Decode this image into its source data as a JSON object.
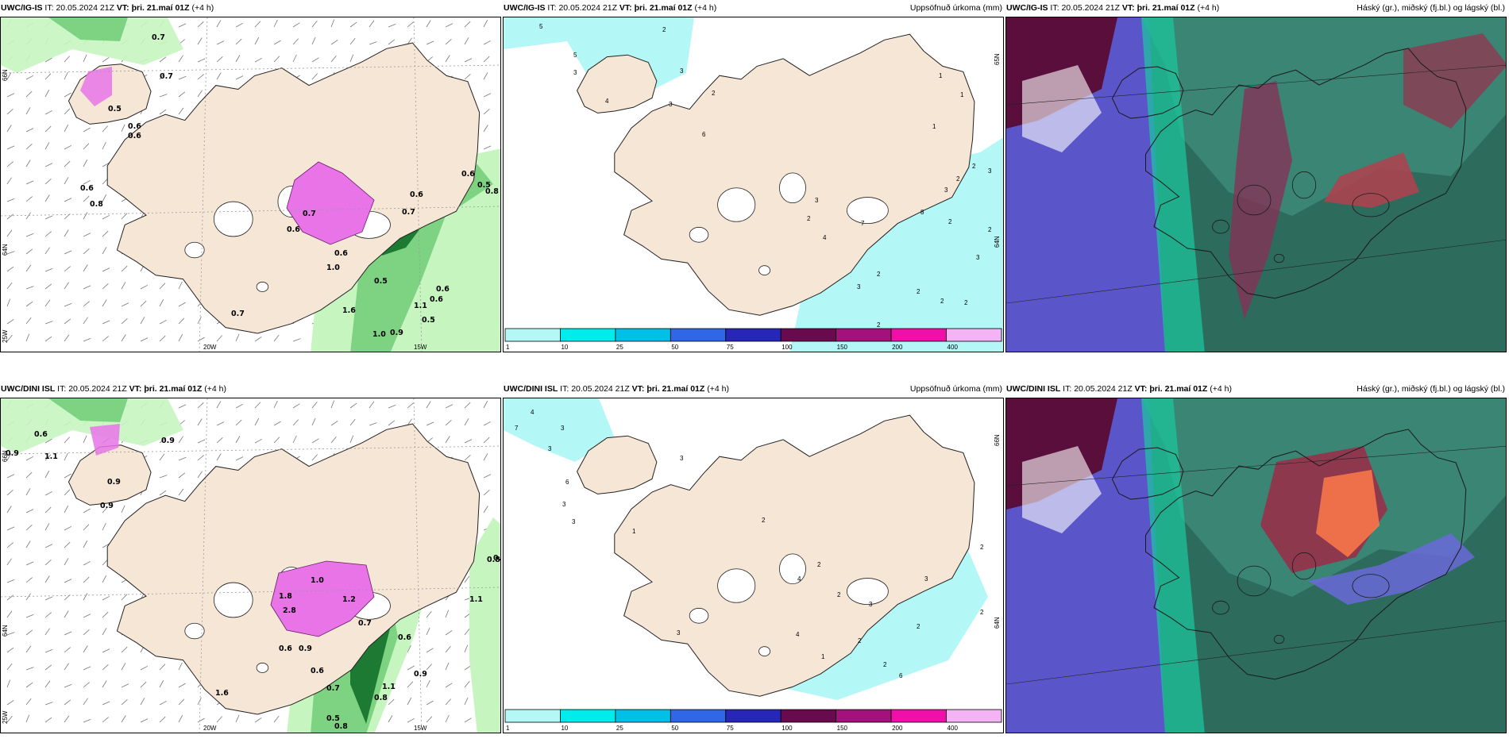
{
  "panels": [
    {
      "id": "p1",
      "model": "UWC/IG-IS",
      "it_label": "IT:",
      "it": "20.05.2024 21Z",
      "vt_label": "VT:",
      "vt": "þri. 21.maí 01Z",
      "lead": "(+4 h)",
      "right_title": "",
      "lat_labels": [
        "66N",
        "64N"
      ],
      "lon_labels": [
        "20W",
        "15W"
      ],
      "corner_label": "25W",
      "values": [
        "0.7",
        "0.7",
        "0.5",
        "0.6",
        "0.6",
        "0.6",
        "0.8",
        "0.6",
        "0.5",
        "0.6",
        "0.7",
        "0.6",
        "0.6",
        "1.6",
        "1.0",
        "0.9",
        "1.1",
        "0.5",
        "1.0",
        "0.5",
        "0.7",
        "0.6",
        "0.6",
        "0.7",
        "0.8"
      ]
    },
    {
      "id": "p2",
      "model": "UWC/IG-IS",
      "it_label": "IT:",
      "it": "20.05.2024 21Z",
      "vt_label": "VT:",
      "vt": "þri. 21.maí 01Z",
      "lead": "(+4 h)",
      "right_title": "Uppsöfnuð úrkoma (mm)",
      "lat_labels": [
        "65N",
        "64N"
      ],
      "values": [
        "5",
        "2",
        "5",
        "3",
        "4",
        "3",
        "3",
        "2",
        "1",
        "1",
        "1",
        "2",
        "3",
        "2",
        "3",
        "3",
        "2",
        "4",
        "7",
        "8",
        "2",
        "2",
        "3",
        "2",
        "3",
        "2",
        "2",
        "2",
        "2",
        "6"
      ]
    },
    {
      "id": "p3",
      "model": "UWC/IG-IS",
      "it_label": "IT:",
      "it": "20.05.2024 21Z",
      "vt_label": "VT:",
      "vt": "þri. 21.maí 01Z",
      "lead": "(+4 h)",
      "right_title": "Háský (gr.), miðský (fj.bl.) og lágský (bl.)"
    },
    {
      "id": "p4",
      "model": "UWC/DINI ISL",
      "it_label": "IT:",
      "it": "20.05.2024 21Z",
      "vt_label": "VT:",
      "vt": "þri. 21.maí 01Z",
      "lead": "(+4 h)",
      "right_title": "",
      "lat_labels": [
        "66N",
        "64N"
      ],
      "lon_labels": [
        "20W",
        "15W"
      ],
      "corner_label": "25W",
      "values": [
        "0.6",
        "0.9",
        "1.1",
        "0.9",
        "0.9",
        "0.9",
        "0.8",
        "1.1",
        "1.0",
        "1.2",
        "1.8",
        "2.8",
        "0.9",
        "0.6",
        "0.7",
        "0.6",
        "0.7",
        "0.8",
        "0.5",
        "0.8",
        "1.1",
        "0.9",
        "0.6",
        "1.6",
        "0.6"
      ]
    },
    {
      "id": "p5",
      "model": "UWC/DINI ISL",
      "it_label": "IT:",
      "it": "20.05.2024 21Z",
      "vt_label": "VT:",
      "vt": "þri. 21.maí 01Z",
      "lead": "(+4 h)",
      "right_title": "Uppsöfnuð úrkoma (mm)",
      "lat_labels": [
        "66N",
        "64N"
      ],
      "values": [
        "4",
        "7",
        "3",
        "3",
        "3",
        "6",
        "3",
        "3",
        "1",
        "2",
        "2",
        "4",
        "2",
        "3",
        "3",
        "2",
        "2",
        "2",
        "1",
        "4",
        "2",
        "2",
        "6",
        "3"
      ]
    },
    {
      "id": "p6",
      "model": "UWC/DINI ISL",
      "it_label": "IT:",
      "it": "20.05.2024 21Z",
      "vt_label": "VT:",
      "vt": "þri. 21.maí 01Z",
      "lead": "(+4 h)",
      "right_title": "Háský (gr.), miðský (fj.bl.) og lágský (bl.)"
    }
  ],
  "precip_scale": {
    "ticks": [
      "1",
      "10",
      "25",
      "50",
      "75",
      "100",
      "150",
      "200",
      "400"
    ],
    "colors": [
      "#b3f7f7",
      "#00ecec",
      "#00c0e8",
      "#2f67e8",
      "#2626b8",
      "#6a0a4e",
      "#a3117d",
      "#f00fa9",
      "#f4b3f5"
    ]
  },
  "colors": {
    "land": "#f6e6d6",
    "sea": "#ffffff",
    "precip_light": "#c6f5c0",
    "precip_mid": "#7ed382",
    "precip_dark": "#1d7a32",
    "snow": "#e874e8",
    "cloud_high": "#5a0e3c",
    "cloud_mid": "#2e8c7a",
    "cloud_low": "#5a55c8",
    "cloud_bright": "#ff7a4a"
  }
}
